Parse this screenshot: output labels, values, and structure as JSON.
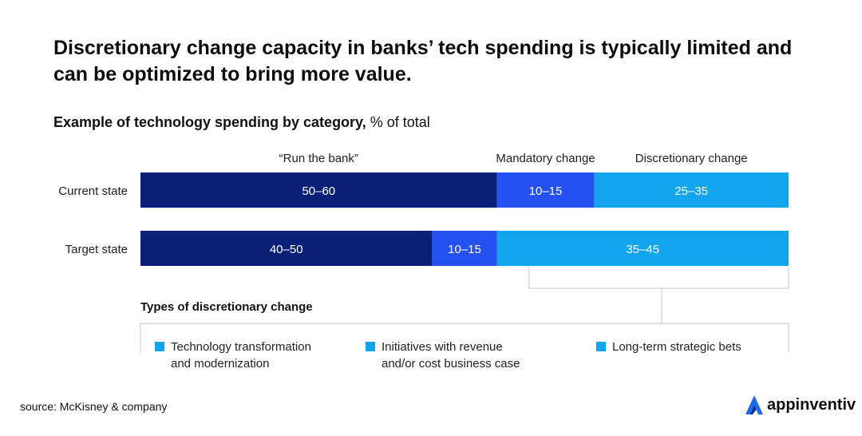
{
  "title": "Discretionary change capacity in banks’ tech spending is typically limited and can be optimized to bring more value.",
  "subtitle": {
    "bold": "Example of technology spending by category,",
    "unit": "% of total"
  },
  "chart_data": {
    "type": "bar",
    "orientation": "horizontal",
    "stacked": true,
    "title": "Example of technology spending by category",
    "unit": "% of total",
    "x_range": [
      0,
      100
    ],
    "categories": [
      "Current state",
      "Target state"
    ],
    "series": [
      {
        "name": "“Run the bank”",
        "color": "#0a1f78",
        "labels": [
          "50–60",
          "40–50"
        ],
        "values": [
          55,
          45
        ]
      },
      {
        "name": "Mandatory change",
        "color": "#2451f0",
        "labels": [
          "10–15",
          "10–15"
        ],
        "values": [
          15,
          10
        ]
      },
      {
        "name": "Discretionary change",
        "color": "#13a4ee",
        "labels": [
          "25–35",
          "35–45"
        ],
        "values": [
          30,
          45
        ]
      }
    ]
  },
  "types": {
    "title": "Types of discretionary change",
    "items": [
      {
        "line1": "Technology transformation",
        "line2": "and modernization",
        "color": "#13a4ee"
      },
      {
        "line1": "Initiatives with revenue",
        "line2": "and/or cost business case",
        "color": "#13a4ee"
      },
      {
        "line1": "Long-term strategic bets",
        "line2": "",
        "color": "#13a4ee"
      }
    ]
  },
  "source": "source: McKisney & company",
  "brand": {
    "name": "appinventiv",
    "icon": "appinventiv-logo-icon",
    "color": "#1f6bf0"
  }
}
